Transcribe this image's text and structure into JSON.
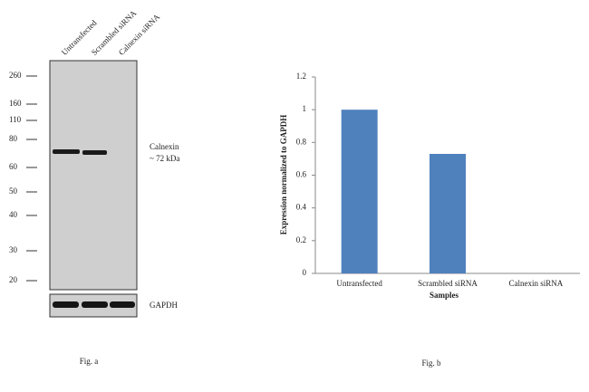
{
  "blot": {
    "lanes": [
      "Untransfected",
      "Scrambled siRNA",
      "Calnexin siRNA"
    ],
    "markers": [
      "260",
      "160",
      "110",
      "80",
      "60",
      "50",
      "40",
      "30",
      "20"
    ],
    "band_label": [
      "Calnexin",
      "~ 72 kDa"
    ],
    "loading_control": "GAPDH",
    "caption": "Fig. a"
  },
  "chart_data": {
    "type": "bar",
    "categories": [
      "Untransfected",
      "Scrambled siRNA",
      "Calnexin siRNA"
    ],
    "values": [
      1,
      0.73,
      0
    ],
    "color": "#4f81bd",
    "ylim": [
      0,
      1.2
    ],
    "yticks": [
      0,
      0.2,
      0.4,
      0.6,
      0.8,
      1,
      1.2
    ],
    "xlabel": "Samples",
    "ylabel": "Expression  normalized to GAPDH",
    "caption": "Fig. b"
  }
}
